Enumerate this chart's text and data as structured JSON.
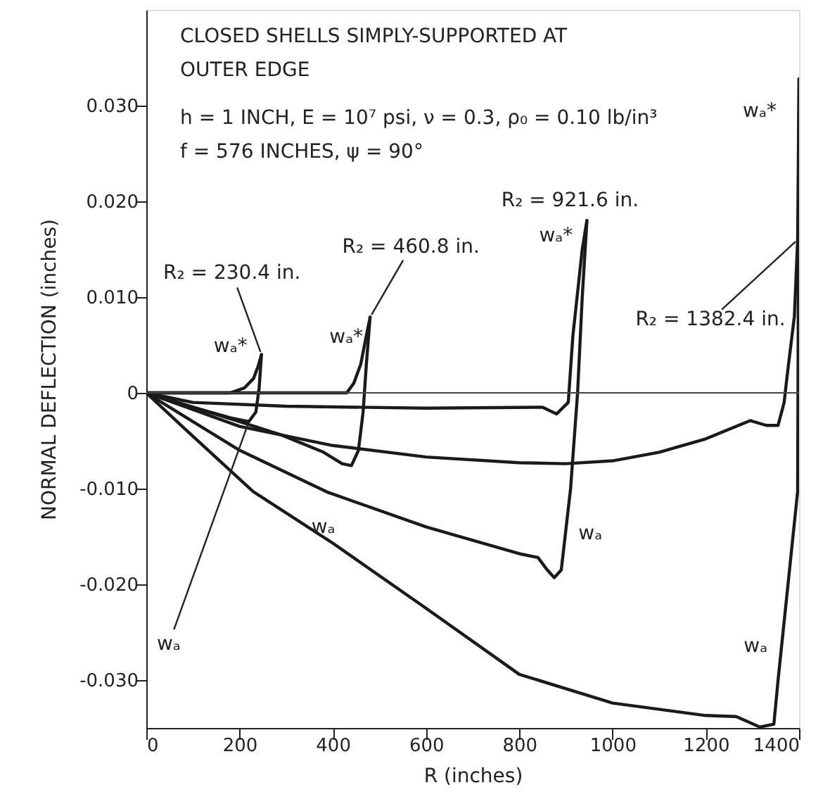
{
  "chart_data": {
    "type": "line",
    "xlabel": "R  (inches)",
    "ylabel": "NORMAL DEFLECTION (inches)",
    "xlim": [
      0,
      1400
    ],
    "ylim": [
      -0.035,
      0.04
    ],
    "xticks": [
      0,
      200,
      400,
      600,
      800,
      1000,
      1200,
      1400
    ],
    "yticks": [
      {
        "value": -0.03,
        "label": "-0.030"
      },
      {
        "value": -0.02,
        "label": "-0.020"
      },
      {
        "value": -0.01,
        "label": "-0.010"
      },
      0,
      {
        "value": 0.01,
        "label": "0.010"
      },
      {
        "value": 0.02,
        "label": "0.020"
      },
      {
        "value": 0.03,
        "label": "0.030"
      }
    ],
    "grid": false,
    "marker": "none",
    "line_style": "solid",
    "ref_lines": [
      {
        "axis": "y",
        "value": 0,
        "label": null,
        "color": "#444444"
      }
    ],
    "series": [
      {
        "color": "#1a1a1a",
        "x": [
          0,
          100,
          180,
          210,
          230,
          240,
          247
        ],
        "values": [
          0,
          0,
          0,
          0.0005,
          0.0015,
          0.0028,
          0.004
        ]
      },
      {
        "color": "#1a1a1a",
        "x": [
          0,
          100,
          180,
          220,
          235,
          242,
          247
        ],
        "values": [
          0,
          -0.0015,
          -0.0026,
          -0.003,
          -0.002,
          0.0005,
          0.004
        ]
      },
      {
        "color": "#1a1a1a",
        "x": [
          0,
          200,
          430,
          445,
          460,
          470,
          480
        ],
        "values": [
          0,
          0,
          0,
          0.001,
          0.003,
          0.0055,
          0.0079
        ]
      },
      {
        "color": "#1a1a1a",
        "x": [
          0,
          100,
          200,
          290,
          380,
          420,
          440,
          455,
          465,
          472,
          480
        ],
        "values": [
          0,
          -0.0015,
          -0.003,
          -0.0044,
          -0.0062,
          -0.0074,
          -0.0076,
          -0.006,
          -0.002,
          0.003,
          0.0079
        ]
      },
      {
        "color": "#1a1a1a",
        "x": [
          0,
          100,
          300,
          600,
          850,
          880,
          905,
          915,
          935,
          945
        ],
        "values": [
          0,
          -0.001,
          -0.0014,
          -0.0016,
          -0.0015,
          -0.0022,
          -0.001,
          0.006,
          0.015,
          0.018
        ]
      },
      {
        "color": "#1a1a1a",
        "x": [
          0,
          100,
          200,
          390,
          600,
          800,
          840,
          860,
          875,
          890,
          910,
          925,
          935,
          945
        ],
        "values": [
          0,
          -0.003,
          -0.006,
          -0.0104,
          -0.014,
          -0.0168,
          -0.0172,
          -0.0185,
          -0.0193,
          -0.0185,
          -0.01,
          0,
          0.01,
          0.018
        ]
      },
      {
        "color": "#1a1a1a",
        "x": [
          0,
          200,
          400,
          600,
          800,
          900,
          1000,
          1100,
          1200,
          1295,
          1330,
          1355,
          1368,
          1375,
          1390,
          1397,
          1400
        ],
        "values": [
          0,
          -0.0035,
          -0.0055,
          -0.0067,
          -0.0073,
          -0.0074,
          -0.0071,
          -0.0062,
          -0.0048,
          -0.0029,
          -0.0034,
          -0.0034,
          -0.001,
          0.002,
          0.008,
          0.016,
          0.0328
        ]
      },
      {
        "color": "#1a1a1a",
        "x": [
          0,
          88,
          229,
          400,
          600,
          800,
          1000,
          1200,
          1265,
          1316,
          1346,
          1355,
          1397,
          1400
        ],
        "values": [
          0,
          -0.004,
          -0.0103,
          -0.0157,
          -0.0225,
          -0.0294,
          -0.0324,
          -0.0337,
          -0.0338,
          -0.0349,
          -0.0346,
          -0.03,
          -0.0103,
          0.0328
        ]
      }
    ],
    "annotations": [
      "CLOSED SHELLS SIMPLY-SUPPORTED AT",
      "OUTER EDGE",
      "h = 1 INCH, E = 10⁷ psi, ν = 0.3, ρ₀ = 0.10 lb/in³",
      "f = 576 INCHES, ψ = 90°",
      {
        "text": "R₂ = 230.4 in.",
        "x": 247,
        "y": 0.004
      },
      {
        "text": "R₂ = 460.8 in.",
        "x": 480,
        "y": 0.0079
      },
      {
        "text": "R₂ = 921.6 in.",
        "x": 945,
        "y": 0.018
      },
      {
        "text": "R₂ = 1382.4 in.",
        "x": 1397,
        "y": 0.016
      },
      {
        "text": "wₐ*",
        "x": 247,
        "y": 0.004
      },
      {
        "text": "wₐ*",
        "x": 480,
        "y": 0.0079
      },
      {
        "text": "wₐ*",
        "x": 945,
        "y": 0.018
      },
      {
        "text": "wₐ*",
        "x": 1400,
        "y": 0.0328
      },
      {
        "text": "wₐ",
        "x": 220,
        "y": -0.003
      },
      {
        "text": "wₐ",
        "x": 440,
        "y": -0.0076
      },
      {
        "text": "wₐ",
        "x": 910,
        "y": -0.01
      },
      {
        "text": "wₐ",
        "x": 1355,
        "y": -0.03
      }
    ]
  }
}
